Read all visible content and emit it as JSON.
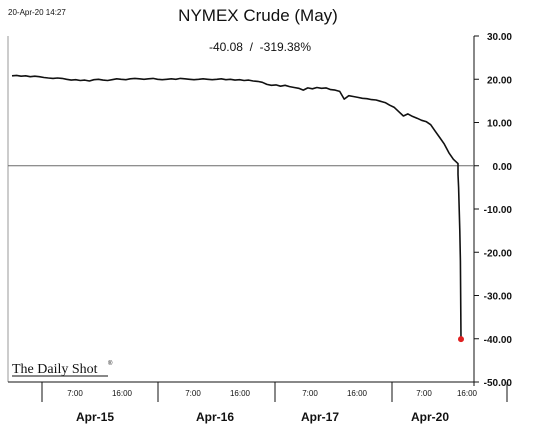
{
  "chart_data": {
    "type": "line",
    "title": "NYMEX Crude (May)",
    "timestamp": "20-Apr-20 14:27",
    "change_label": "-40.08  /  -319.38%",
    "watermark": "The Daily Shot",
    "watermark_mark": "®",
    "ylabel": "",
    "xlabel": "",
    "ylim": [
      -50,
      30
    ],
    "yticks": [
      30,
      20,
      10,
      0,
      -10,
      -20,
      -30,
      -40,
      -50
    ],
    "ytick_labels": [
      "30.00",
      "20.00",
      "10.00",
      "0.00",
      "-10.00",
      "-20.00",
      "-30.00",
      "-40.00",
      "-50.00"
    ],
    "grid": false,
    "legend": "none",
    "zero_line": true,
    "x_session_labels": [
      "Apr-15",
      "Apr-16",
      "Apr-17",
      "Apr-20"
    ],
    "x_time_labels": [
      "7:00",
      "16:00",
      "7:00",
      "16:00",
      "7:00",
      "16:00",
      "7:00",
      "16:00"
    ],
    "line_color": "#111111",
    "last_point_color": "#e02020",
    "series": [
      {
        "values": [
          20.8,
          20.9,
          20.7,
          20.8,
          20.6,
          20.7,
          20.6,
          20.4,
          20.3,
          20.2,
          20.3,
          20.2,
          20.0,
          19.8,
          19.9,
          19.7,
          19.8,
          19.6,
          19.9,
          20.0,
          19.8,
          19.7,
          19.9,
          20.1,
          20.0,
          19.9,
          20.1,
          20.2,
          20.1,
          20.0,
          20.1,
          20.2,
          20.0,
          19.9,
          20.0,
          20.1,
          20.0,
          20.2,
          20.1,
          20.0,
          19.9,
          20.0,
          20.1,
          20.0,
          19.9,
          20.0,
          20.1,
          19.9,
          20.0,
          19.8,
          19.9,
          19.7,
          19.8,
          19.6,
          19.5,
          19.3,
          18.8,
          18.6,
          18.7,
          18.4,
          18.6,
          18.3,
          18.1,
          17.9,
          17.5,
          18.0,
          17.8,
          18.1,
          17.9,
          18.0,
          17.6,
          17.5,
          17.2,
          15.4,
          16.2,
          16.0,
          15.8,
          15.6,
          15.5,
          15.3,
          15.2,
          14.9,
          14.6,
          14.0,
          13.5,
          12.5,
          11.5,
          12.0,
          11.4,
          11.0,
          10.5,
          10.2,
          9.5,
          8.0,
          6.5,
          5.0,
          3.0,
          1.5,
          0.5,
          -2.0,
          -5.0,
          -10.0,
          -15.0,
          -22.0,
          -40.08
        ]
      }
    ]
  }
}
